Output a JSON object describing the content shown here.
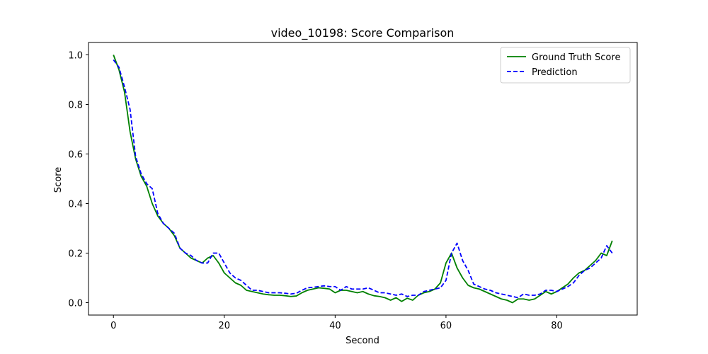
{
  "chart_data": {
    "type": "line",
    "title": "video_10198: Score Comparison",
    "xlabel": "Second",
    "ylabel": "Score",
    "xlim": [
      -4.5,
      94.5
    ],
    "ylim": [
      -0.05,
      1.05
    ],
    "xticks": [
      0,
      20,
      40,
      60,
      80
    ],
    "xtick_labels": [
      "0",
      "20",
      "40",
      "60",
      "80"
    ],
    "yticks": [
      0.0,
      0.2,
      0.4,
      0.6,
      0.8,
      1.0
    ],
    "ytick_labels": [
      "0.0",
      "0.2",
      "0.4",
      "0.6",
      "0.8",
      "1.0"
    ],
    "grid": false,
    "legend_position": "top-right",
    "x": [
      0,
      1,
      2,
      3,
      4,
      5,
      6,
      7,
      8,
      9,
      10,
      11,
      12,
      13,
      14,
      15,
      16,
      17,
      18,
      19,
      20,
      21,
      22,
      23,
      24,
      25,
      26,
      27,
      28,
      29,
      30,
      31,
      32,
      33,
      34,
      35,
      36,
      37,
      38,
      39,
      40,
      41,
      42,
      43,
      44,
      45,
      46,
      47,
      48,
      49,
      50,
      51,
      52,
      53,
      54,
      55,
      56,
      57,
      58,
      59,
      60,
      61,
      62,
      63,
      64,
      65,
      66,
      67,
      68,
      69,
      70,
      71,
      72,
      73,
      74,
      75,
      76,
      77,
      78,
      79,
      80,
      81,
      82,
      83,
      84,
      85,
      86,
      87,
      88,
      89,
      90
    ],
    "series": [
      {
        "name": "Ground Truth Score",
        "color": "#008000",
        "style": "solid",
        "values": [
          1.0,
          0.94,
          0.85,
          0.69,
          0.58,
          0.51,
          0.47,
          0.4,
          0.35,
          0.32,
          0.3,
          0.27,
          0.22,
          0.2,
          0.18,
          0.17,
          0.16,
          0.18,
          0.19,
          0.16,
          0.12,
          0.1,
          0.08,
          0.07,
          0.05,
          0.045,
          0.04,
          0.035,
          0.032,
          0.03,
          0.03,
          0.028,
          0.025,
          0.027,
          0.04,
          0.05,
          0.055,
          0.06,
          0.058,
          0.055,
          0.04,
          0.05,
          0.05,
          0.045,
          0.04,
          0.045,
          0.035,
          0.028,
          0.025,
          0.02,
          0.01,
          0.02,
          0.005,
          0.018,
          0.01,
          0.03,
          0.04,
          0.045,
          0.055,
          0.08,
          0.16,
          0.2,
          0.14,
          0.1,
          0.07,
          0.06,
          0.055,
          0.045,
          0.035,
          0.025,
          0.015,
          0.01,
          0.0,
          0.015,
          0.015,
          0.01,
          0.015,
          0.03,
          0.045,
          0.035,
          0.045,
          0.06,
          0.075,
          0.1,
          0.12,
          0.13,
          0.15,
          0.17,
          0.2,
          0.19,
          0.25
        ]
      },
      {
        "name": "Prediction",
        "color": "#0000ff",
        "style": "dashed",
        "values": [
          0.98,
          0.95,
          0.87,
          0.78,
          0.59,
          0.52,
          0.48,
          0.46,
          0.36,
          0.32,
          0.3,
          0.28,
          0.22,
          0.2,
          0.19,
          0.17,
          0.16,
          0.16,
          0.2,
          0.2,
          0.16,
          0.12,
          0.1,
          0.09,
          0.07,
          0.05,
          0.05,
          0.045,
          0.04,
          0.04,
          0.04,
          0.038,
          0.035,
          0.038,
          0.05,
          0.06,
          0.062,
          0.065,
          0.068,
          0.065,
          0.065,
          0.05,
          0.065,
          0.055,
          0.055,
          0.055,
          0.06,
          0.05,
          0.04,
          0.04,
          0.035,
          0.03,
          0.035,
          0.025,
          0.03,
          0.03,
          0.045,
          0.05,
          0.055,
          0.06,
          0.09,
          0.2,
          0.24,
          0.17,
          0.13,
          0.075,
          0.065,
          0.055,
          0.05,
          0.04,
          0.035,
          0.03,
          0.025,
          0.02,
          0.035,
          0.03,
          0.03,
          0.035,
          0.05,
          0.05,
          0.045,
          0.055,
          0.065,
          0.08,
          0.11,
          0.13,
          0.14,
          0.16,
          0.18,
          0.23,
          0.2
        ]
      }
    ]
  }
}
